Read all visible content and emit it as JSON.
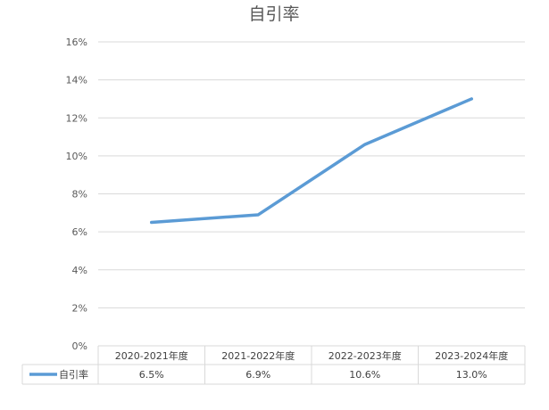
{
  "chart_data": {
    "type": "line",
    "title": "自引率",
    "categories": [
      "2020-2021年度",
      "2021-2022年度",
      "2022-2023年度",
      "2023-2024年度"
    ],
    "series": [
      {
        "name": "自引率",
        "values": [
          6.5,
          6.9,
          10.6,
          13.0
        ],
        "labels": [
          "6.5%",
          "6.9%",
          "10.6%",
          "13.0%"
        ]
      }
    ],
    "yticks": [
      "0%",
      "2%",
      "4%",
      "6%",
      "8%",
      "10%",
      "12%",
      "14%",
      "16%"
    ],
    "ylim": [
      0,
      16
    ],
    "grid": true,
    "legend": "data-table",
    "colors": {
      "series": "#5b9bd5",
      "grid": "#d9d9d9",
      "text": "#595959"
    }
  }
}
